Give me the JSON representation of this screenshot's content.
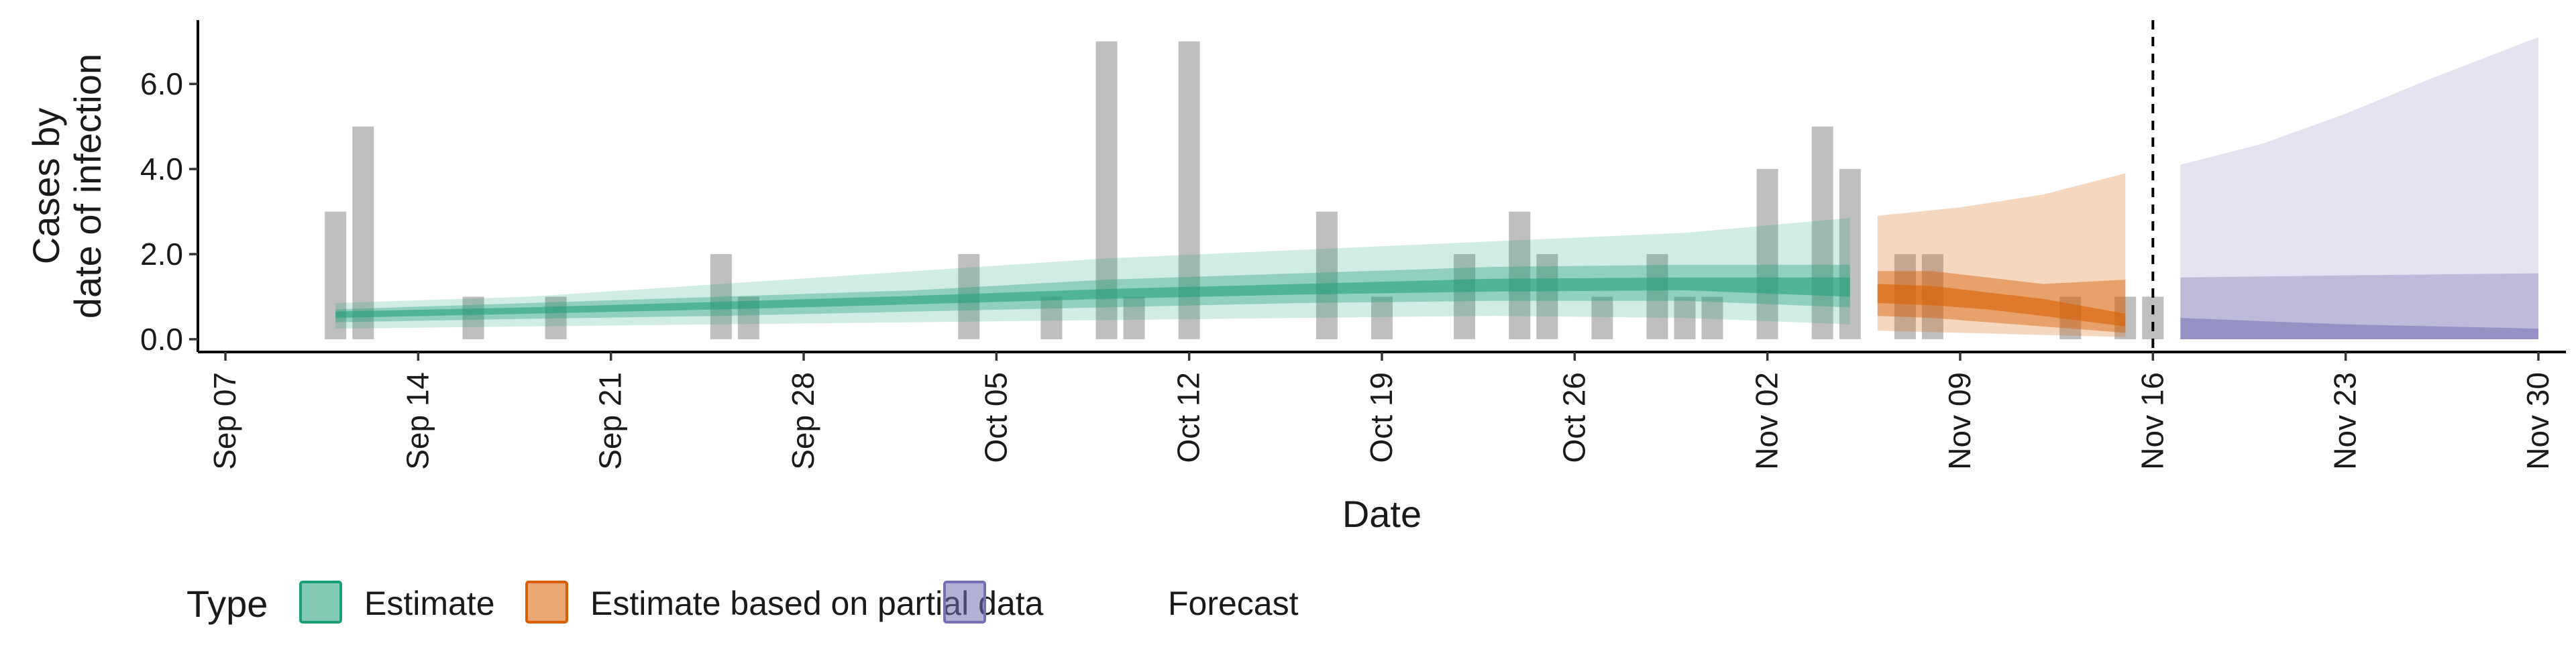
{
  "chart_data": {
    "type": "area",
    "xlabel": "Date",
    "ylabel": [
      "Cases by",
      "date of infection"
    ],
    "x_domain": [
      "2020-09-06",
      "2020-12-01"
    ],
    "ylim": [
      -0.3,
      7.5
    ],
    "y_ticks": [
      0,
      2,
      4,
      6
    ],
    "y_tick_labels": [
      "0.0",
      "2.0",
      "4.0",
      "6.0"
    ],
    "x_ticks": [
      "2020-09-07",
      "2020-09-14",
      "2020-09-21",
      "2020-09-28",
      "2020-10-05",
      "2020-10-12",
      "2020-10-19",
      "2020-10-26",
      "2020-11-02",
      "2020-11-09",
      "2020-11-16",
      "2020-11-23",
      "2020-11-30"
    ],
    "x_tick_labels": [
      "Sep 07",
      "Sep 14",
      "Sep 21",
      "Sep 28",
      "Oct 05",
      "Oct 12",
      "Oct 19",
      "Oct 26",
      "Nov 02",
      "Nov 09",
      "Nov 16",
      "Nov 23",
      "Nov 30"
    ],
    "grid": false,
    "vline_date": "2020-11-16",
    "colors": {
      "estimate": "#1b9e77",
      "partial": "#d95f02",
      "forecast": "#7570b3",
      "bars": "#a6a6a6"
    },
    "observed_cases": [
      {
        "date": "2020-09-11",
        "value": 3
      },
      {
        "date": "2020-09-12",
        "value": 5
      },
      {
        "date": "2020-09-16",
        "value": 1
      },
      {
        "date": "2020-09-19",
        "value": 1
      },
      {
        "date": "2020-09-25",
        "value": 2
      },
      {
        "date": "2020-09-26",
        "value": 1
      },
      {
        "date": "2020-10-04",
        "value": 2
      },
      {
        "date": "2020-10-07",
        "value": 1
      },
      {
        "date": "2020-10-09",
        "value": 7
      },
      {
        "date": "2020-10-10",
        "value": 1
      },
      {
        "date": "2020-10-12",
        "value": 7
      },
      {
        "date": "2020-10-17",
        "value": 3
      },
      {
        "date": "2020-10-19",
        "value": 1
      },
      {
        "date": "2020-10-22",
        "value": 2
      },
      {
        "date": "2020-10-24",
        "value": 3
      },
      {
        "date": "2020-10-25",
        "value": 2
      },
      {
        "date": "2020-10-27",
        "value": 1
      },
      {
        "date": "2020-10-29",
        "value": 2
      },
      {
        "date": "2020-10-30",
        "value": 1
      },
      {
        "date": "2020-10-31",
        "value": 1
      },
      {
        "date": "2020-11-02",
        "value": 4
      },
      {
        "date": "2020-11-04",
        "value": 5
      },
      {
        "date": "2020-11-05",
        "value": 4
      },
      {
        "date": "2020-11-07",
        "value": 2
      },
      {
        "date": "2020-11-08",
        "value": 2
      },
      {
        "date": "2020-11-13",
        "value": 1
      },
      {
        "date": "2020-11-15",
        "value": 1
      },
      {
        "date": "2020-11-16",
        "value": 1
      }
    ],
    "series": [
      {
        "name": "Estimate",
        "color_key": "estimate",
        "bands": [
          {
            "opacity": 0.2,
            "points": [
              {
                "date": "2020-09-11",
                "lo": 0.25,
                "hi": 0.85
              },
              {
                "date": "2020-09-18",
                "lo": 0.3,
                "hi": 1.0
              },
              {
                "date": "2020-09-25",
                "lo": 0.35,
                "hi": 1.3
              },
              {
                "date": "2020-10-02",
                "lo": 0.4,
                "hi": 1.6
              },
              {
                "date": "2020-10-09",
                "lo": 0.45,
                "hi": 1.9
              },
              {
                "date": "2020-10-16",
                "lo": 0.5,
                "hi": 2.1
              },
              {
                "date": "2020-10-23",
                "lo": 0.55,
                "hi": 2.3
              },
              {
                "date": "2020-10-30",
                "lo": 0.5,
                "hi": 2.5
              },
              {
                "date": "2020-11-05",
                "lo": 0.35,
                "hi": 2.85
              }
            ]
          },
          {
            "opacity": 0.35,
            "points": [
              {
                "date": "2020-09-11",
                "lo": 0.4,
                "hi": 0.7
              },
              {
                "date": "2020-09-18",
                "lo": 0.48,
                "hi": 0.85
              },
              {
                "date": "2020-09-25",
                "lo": 0.55,
                "hi": 1.0
              },
              {
                "date": "2020-10-02",
                "lo": 0.65,
                "hi": 1.15
              },
              {
                "date": "2020-10-09",
                "lo": 0.75,
                "hi": 1.4
              },
              {
                "date": "2020-10-16",
                "lo": 0.85,
                "hi": 1.55
              },
              {
                "date": "2020-10-23",
                "lo": 0.9,
                "hi": 1.7
              },
              {
                "date": "2020-10-30",
                "lo": 0.9,
                "hi": 1.75
              },
              {
                "date": "2020-11-05",
                "lo": 0.75,
                "hi": 1.75
              }
            ]
          },
          {
            "opacity": 0.55,
            "points": [
              {
                "date": "2020-09-11",
                "lo": 0.5,
                "hi": 0.65
              },
              {
                "date": "2020-09-18",
                "lo": 0.6,
                "hi": 0.75
              },
              {
                "date": "2020-09-25",
                "lo": 0.7,
                "hi": 0.88
              },
              {
                "date": "2020-10-02",
                "lo": 0.82,
                "hi": 1.02
              },
              {
                "date": "2020-10-09",
                "lo": 0.95,
                "hi": 1.18
              },
              {
                "date": "2020-10-16",
                "lo": 1.05,
                "hi": 1.3
              },
              {
                "date": "2020-10-23",
                "lo": 1.12,
                "hi": 1.42
              },
              {
                "date": "2020-10-30",
                "lo": 1.15,
                "hi": 1.45
              },
              {
                "date": "2020-11-05",
                "lo": 1.0,
                "hi": 1.45
              }
            ]
          }
        ]
      },
      {
        "name": "Estimate based on partial data",
        "color_key": "partial",
        "bands": [
          {
            "opacity": 0.25,
            "points": [
              {
                "date": "2020-11-06",
                "lo": 0.2,
                "hi": 2.9
              },
              {
                "date": "2020-11-09",
                "lo": 0.15,
                "hi": 3.1
              },
              {
                "date": "2020-11-12",
                "lo": 0.1,
                "hi": 3.4
              },
              {
                "date": "2020-11-15",
                "lo": 0.05,
                "hi": 3.9
              }
            ]
          },
          {
            "opacity": 0.45,
            "points": [
              {
                "date": "2020-11-06",
                "lo": 0.55,
                "hi": 1.6
              },
              {
                "date": "2020-11-08",
                "lo": 0.5,
                "hi": 1.6
              },
              {
                "date": "2020-11-10",
                "lo": 0.4,
                "hi": 1.45
              },
              {
                "date": "2020-11-12",
                "lo": 0.3,
                "hi": 1.3
              },
              {
                "date": "2020-11-15",
                "lo": 0.15,
                "hi": 1.4
              }
            ]
          },
          {
            "opacity": 0.6,
            "points": [
              {
                "date": "2020-11-06",
                "lo": 0.85,
                "hi": 1.3
              },
              {
                "date": "2020-11-08",
                "lo": 0.8,
                "hi": 1.25
              },
              {
                "date": "2020-11-10",
                "lo": 0.7,
                "hi": 1.1
              },
              {
                "date": "2020-11-12",
                "lo": 0.55,
                "hi": 0.95
              },
              {
                "date": "2020-11-15",
                "lo": 0.3,
                "hi": 0.6
              }
            ]
          }
        ]
      },
      {
        "name": "Forecast",
        "color_key": "forecast",
        "bands": [
          {
            "opacity": 0.2,
            "points": [
              {
                "date": "2020-11-17",
                "lo": 0.0,
                "hi": 4.1
              },
              {
                "date": "2020-11-20",
                "lo": 0.0,
                "hi": 4.6
              },
              {
                "date": "2020-11-23",
                "lo": 0.0,
                "hi": 5.3
              },
              {
                "date": "2020-11-26",
                "lo": 0.0,
                "hi": 6.1
              },
              {
                "date": "2020-11-30",
                "lo": 0.0,
                "hi": 7.1
              }
            ]
          },
          {
            "opacity": 0.35,
            "points": [
              {
                "date": "2020-11-17",
                "lo": 0.0,
                "hi": 1.45
              },
              {
                "date": "2020-11-23",
                "lo": 0.0,
                "hi": 1.5
              },
              {
                "date": "2020-11-30",
                "lo": 0.0,
                "hi": 1.55
              }
            ]
          },
          {
            "opacity": 0.55,
            "points": [
              {
                "date": "2020-11-17",
                "lo": 0.0,
                "hi": 0.5
              },
              {
                "date": "2020-11-23",
                "lo": 0.0,
                "hi": 0.35
              },
              {
                "date": "2020-11-30",
                "lo": 0.0,
                "hi": 0.25
              }
            ]
          }
        ]
      }
    ],
    "legend": {
      "title": "Type",
      "placement": "bottom-left",
      "entries": [
        {
          "label": "Estimate",
          "color_key": "estimate"
        },
        {
          "label": "Estimate based on partial data",
          "color_key": "partial"
        },
        {
          "label": "Forecast",
          "color_key": "forecast"
        }
      ]
    }
  }
}
